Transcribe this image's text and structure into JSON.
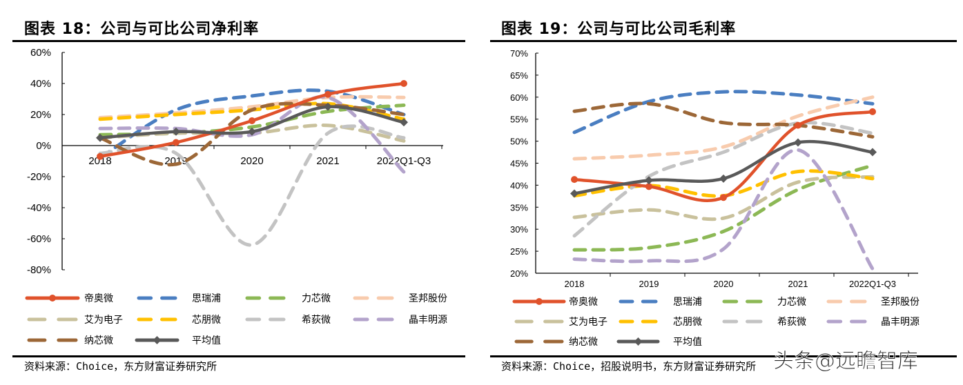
{
  "chart_data": [
    {
      "type": "line",
      "title": "图表 18：公司与可比公司净利率",
      "categories": [
        "2018",
        "2019",
        "2020",
        "2021",
        "2022Q1-Q3"
      ],
      "ylim": [
        -80,
        60
      ],
      "yticks": [
        "60%",
        "40%",
        "20%",
        "0%",
        "-20%",
        "-40%",
        "-60%",
        "-80%"
      ],
      "ytick_values": [
        60,
        40,
        20,
        0,
        -20,
        -40,
        -60,
        -80
      ],
      "grid": false,
      "legend": "bottom",
      "source": "资料来源：Choice，东方财富证券研究所",
      "series": [
        {
          "name": "帝奥微",
          "values": [
            -7,
            2,
            16,
            33,
            40
          ],
          "color": "#E0522B",
          "style": "solid",
          "marker": "circle"
        },
        {
          "name": "思瑞浦",
          "values": [
            -8,
            23,
            32,
            35,
            20
          ],
          "color": "#4A7EC1",
          "style": "dashed"
        },
        {
          "name": "力芯微",
          "values": [
            7,
            8,
            12,
            22,
            26
          ],
          "color": "#8CB855",
          "style": "dashed"
        },
        {
          "name": "圣邦股份",
          "values": [
            18,
            21,
            25,
            31,
            31
          ],
          "color": "#F8CBAD",
          "style": "dashed"
        },
        {
          "name": "艾为电子",
          "values": [
            5,
            8,
            8,
            13,
            3
          ],
          "color": "#C9C19C",
          "style": "dashed"
        },
        {
          "name": "芯朋微",
          "values": [
            17,
            20,
            23,
            27,
            17
          ],
          "color": "#FFC000",
          "style": "dashed"
        },
        {
          "name": "希荻微",
          "values": [
            -5,
            -5,
            -64,
            8,
            5
          ],
          "color": "#C3C3C3",
          "style": "dashed"
        },
        {
          "name": "晶丰明源",
          "values": [
            11,
            11,
            7,
            31,
            -17
          ],
          "color": "#B3A3CB",
          "style": "dashed"
        },
        {
          "name": "纳芯微",
          "values": [
            5,
            -12,
            23,
            26,
            20
          ],
          "color": "#9C6737",
          "style": "dashed"
        },
        {
          "name": "平均值",
          "values": [
            5,
            9,
            9,
            25,
            15
          ],
          "color": "#595959",
          "style": "solid",
          "marker": "diamond"
        }
      ]
    },
    {
      "type": "line",
      "title": "图表 19：公司与可比公司毛利率",
      "categories": [
        "2018",
        "2019",
        "2020",
        "2021",
        "2022Q1-Q3"
      ],
      "ylim": [
        20,
        70
      ],
      "yticks": [
        "70%",
        "65%",
        "60%",
        "55%",
        "50%",
        "45%",
        "40%",
        "35%",
        "30%",
        "25%",
        "20%"
      ],
      "ytick_values": [
        70,
        65,
        60,
        55,
        50,
        45,
        40,
        35,
        30,
        25,
        20
      ],
      "grid": false,
      "legend": "bottom",
      "source": "资料来源：Choice，招股说明书，东方财富证券研究所",
      "series": [
        {
          "name": "帝奥微",
          "values": [
            41.3,
            39.7,
            37.2,
            53.6,
            56.7
          ],
          "color": "#E0522B",
          "style": "solid",
          "marker": "circle"
        },
        {
          "name": "思瑞浦",
          "values": [
            52,
            59,
            61.2,
            60.5,
            58.5
          ],
          "color": "#4A7EC1",
          "style": "dashed"
        },
        {
          "name": "力芯微",
          "values": [
            25.3,
            25.8,
            29.5,
            39,
            44.5
          ],
          "color": "#8CB855",
          "style": "dashed"
        },
        {
          "name": "圣邦股份",
          "values": [
            46,
            46.8,
            48.7,
            55.7,
            60
          ],
          "color": "#F8CBAD",
          "style": "dashed"
        },
        {
          "name": "艾为电子",
          "values": [
            32.7,
            34.4,
            32.5,
            40.7,
            41.9
          ],
          "color": "#C9C19C",
          "style": "dashed"
        },
        {
          "name": "芯朋微",
          "values": [
            37.6,
            39.9,
            37.6,
            43.1,
            41.5
          ],
          "color": "#FFC000",
          "style": "dashed"
        },
        {
          "name": "希荻微",
          "values": [
            28.5,
            42,
            47.5,
            54.1,
            51.8
          ],
          "color": "#C3C3C3",
          "style": "dashed"
        },
        {
          "name": "晶丰明源",
          "values": [
            23.2,
            22.8,
            25.5,
            48,
            21
          ],
          "color": "#B3A3CB",
          "style": "dashed"
        },
        {
          "name": "纳芯微",
          "values": [
            56.8,
            58.5,
            54.2,
            53.6,
            51
          ],
          "color": "#9C6737",
          "style": "dashed"
        },
        {
          "name": "平均值",
          "values": [
            38.1,
            41.1,
            41.5,
            49.7,
            47.5
          ],
          "color": "#595959",
          "style": "solid",
          "marker": "diamond"
        }
      ]
    }
  ],
  "watermark": "头条@远瞻智库"
}
